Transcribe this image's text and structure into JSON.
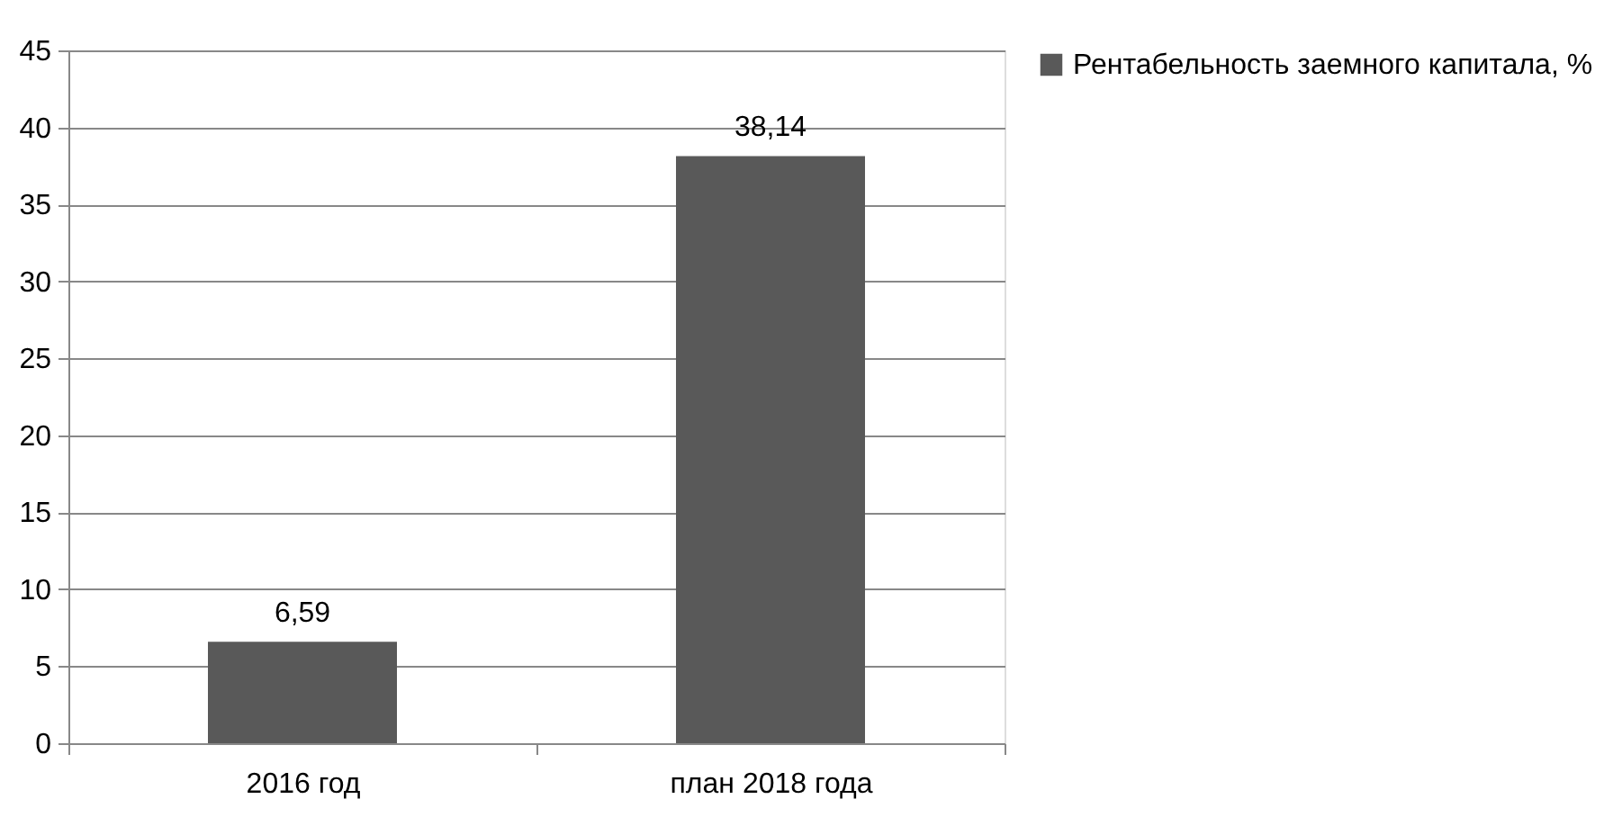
{
  "chart_data": {
    "type": "bar",
    "categories": [
      "2016 год",
      "план 2018 года"
    ],
    "series": [
      {
        "name": "Рентабельность заемного капитала, %",
        "color": "#595959",
        "values": [
          6.59,
          38.14
        ],
        "value_labels": [
          "6,59",
          "38,14"
        ]
      }
    ],
    "ylim": [
      0,
      45
    ],
    "yticks": [
      0,
      5,
      10,
      15,
      20,
      25,
      30,
      35,
      40,
      45
    ],
    "grid": "y",
    "legend": "right"
  }
}
